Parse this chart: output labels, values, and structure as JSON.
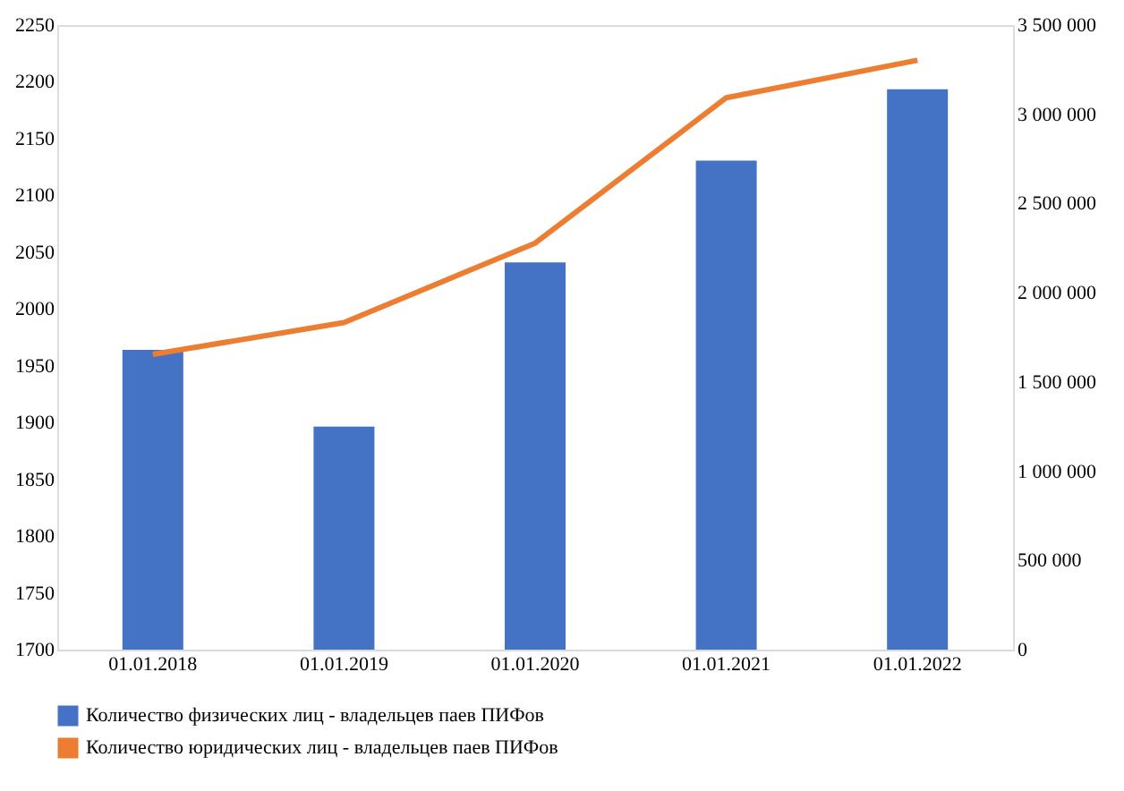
{
  "chart_data": {
    "type": "bar",
    "categories": [
      "01.01.2018",
      "01.01.2019",
      "01.01.2020",
      "01.01.2021",
      "01.01.2022"
    ],
    "series": [
      {
        "name": "Количество физических лиц - владельцев паев ПИФов",
        "axis": "y2",
        "color": "#4472c4",
        "values": [
          1680000,
          1250000,
          2170000,
          2740000,
          3140000
        ]
      },
      {
        "name": "Количество юридических лиц - владельцев паев ПИФов",
        "type": "line",
        "color": "#ed7d31",
        "values": [
          1960,
          1988,
          2058,
          2186,
          2219
        ]
      }
    ],
    "ylim": [
      1700,
      2250
    ],
    "yticks": [
      1700,
      1750,
      1800,
      1850,
      1900,
      1950,
      2000,
      2050,
      2100,
      2150,
      2200,
      2250
    ],
    "y2lim": [
      0,
      3500000
    ],
    "y2ticks": [
      {
        "value": 0,
        "label": "0"
      },
      {
        "value": 500000,
        "label": "500 000"
      },
      {
        "value": 1000000,
        "label": "1 000 000"
      },
      {
        "value": 1500000,
        "label": "1 500 000"
      },
      {
        "value": 2000000,
        "label": "2 000 000"
      },
      {
        "value": 2500000,
        "label": "2 500 000"
      },
      {
        "value": 3000000,
        "label": "3 000 000"
      },
      {
        "value": 3500000,
        "label": "3 500 000"
      }
    ],
    "grid": false,
    "legend": "bottom",
    "marker": "none",
    "line_style": "solid"
  }
}
